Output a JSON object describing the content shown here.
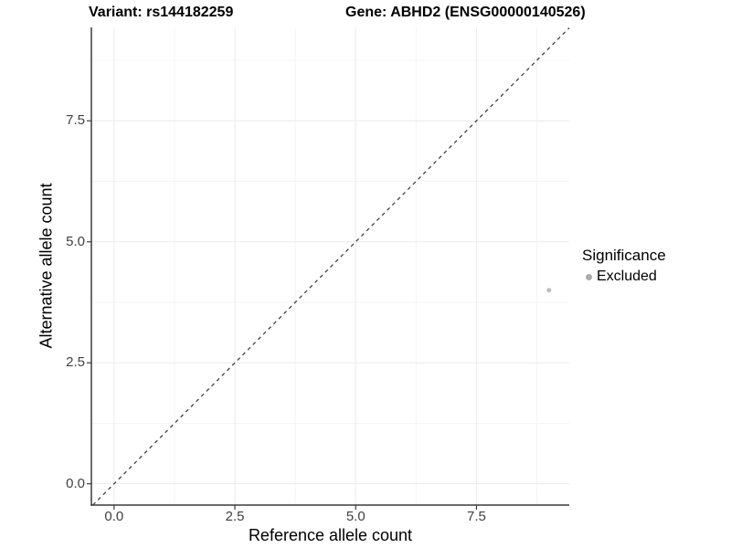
{
  "chart_data": {
    "type": "scatter",
    "titles": {
      "left": "Variant: rs144182259",
      "right": "Gene: ABHD2 (ENSG00000140526)"
    },
    "xlabel": "Reference allele count",
    "ylabel": "Alternative allele count",
    "xlim": [
      -0.47,
      9.42
    ],
    "ylim": [
      -0.44,
      9.43
    ],
    "xticks": {
      "values": [
        0.0,
        2.5,
        5.0,
        7.5
      ],
      "labels": [
        "0.0",
        "2.5",
        "5.0",
        "7.5"
      ]
    },
    "yticks": {
      "values": [
        0.0,
        2.5,
        5.0,
        7.5
      ],
      "labels": [
        "0.0",
        "2.5",
        "5.0",
        "7.5"
      ]
    },
    "minor_xticks": [
      1.25,
      3.75,
      6.25,
      8.75
    ],
    "minor_yticks": [
      1.25,
      3.75,
      6.25,
      8.75
    ],
    "grid": "major+minor",
    "series": [
      {
        "name": "Excluded",
        "color": "#bebebe",
        "marker": "circle",
        "points": [
          {
            "x": 9,
            "y": 4
          }
        ]
      }
    ],
    "reference_line": {
      "type": "identity",
      "slope": 1,
      "intercept": 0,
      "linestyle": "dashed",
      "color": "#333333"
    },
    "legend": {
      "title": "Significance",
      "position": "right",
      "entries": [
        {
          "label": "Excluded",
          "color": "#ababab",
          "marker": "circle"
        }
      ]
    }
  },
  "colors": {
    "background": "#ffffff",
    "axis_line": "#3c3c3c",
    "tick_mark": "#3c3c3c",
    "tick_label": "#404040",
    "grid_major": "#ebebeb",
    "grid_minor": "#f4f4f4",
    "title_text": "#000000"
  }
}
